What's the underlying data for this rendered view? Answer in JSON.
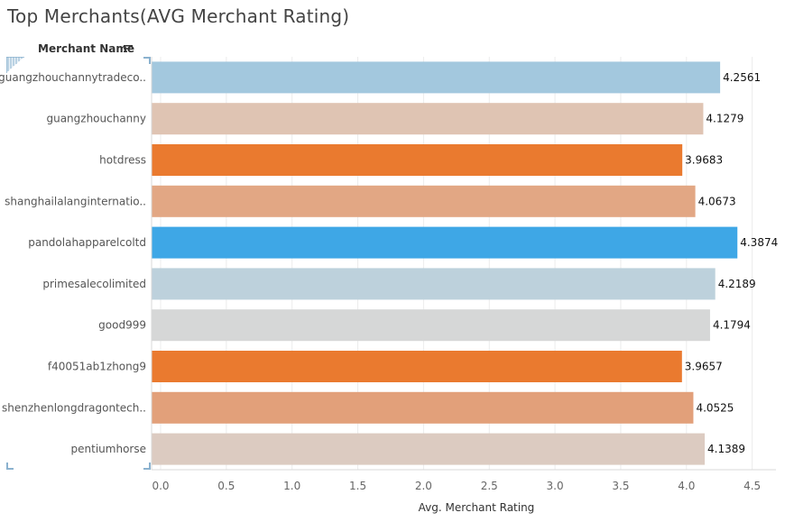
{
  "chart_data": {
    "type": "bar",
    "orientation": "horizontal",
    "title": "Top Merchants(AVG Merchant Rating)",
    "row_header": "Merchant Name",
    "xlabel": "Avg. Merchant Rating",
    "xlim": [
      0,
      4.6
    ],
    "xticks": [
      "0.0",
      "0.5",
      "1.0",
      "1.5",
      "2.0",
      "2.5",
      "3.0",
      "3.5",
      "4.0",
      "4.5"
    ],
    "categories": [
      "guangzhouchannytradeco..",
      "guangzhouchanny",
      "hotdress",
      "shanghailalanginternatio..",
      "pandolahapparelcoltd",
      "primesalecolimited",
      "good999",
      "f40051ab1zhong9",
      "shenzhenlongdragontech..",
      "pentiumhorse"
    ],
    "values": [
      4.2561,
      4.1279,
      3.9683,
      4.0673,
      4.3874,
      4.2189,
      4.1794,
      3.9657,
      4.0525,
      4.1389
    ],
    "value_labels": [
      "4.2561",
      "4.1279",
      "3.9683",
      "4.0673",
      "4.3874",
      "4.2189",
      "4.1794",
      "3.9657",
      "4.0525",
      "4.1389"
    ],
    "colors": [
      "#a3c8de",
      "#dfc4b3",
      "#ea7a2f",
      "#e2a784",
      "#3ea7e6",
      "#bdd1dc",
      "#d6d7d7",
      "#ea7a2f",
      "#e2a07a",
      "#dccbc1"
    ],
    "grid": "vertical",
    "legend": "none"
  }
}
